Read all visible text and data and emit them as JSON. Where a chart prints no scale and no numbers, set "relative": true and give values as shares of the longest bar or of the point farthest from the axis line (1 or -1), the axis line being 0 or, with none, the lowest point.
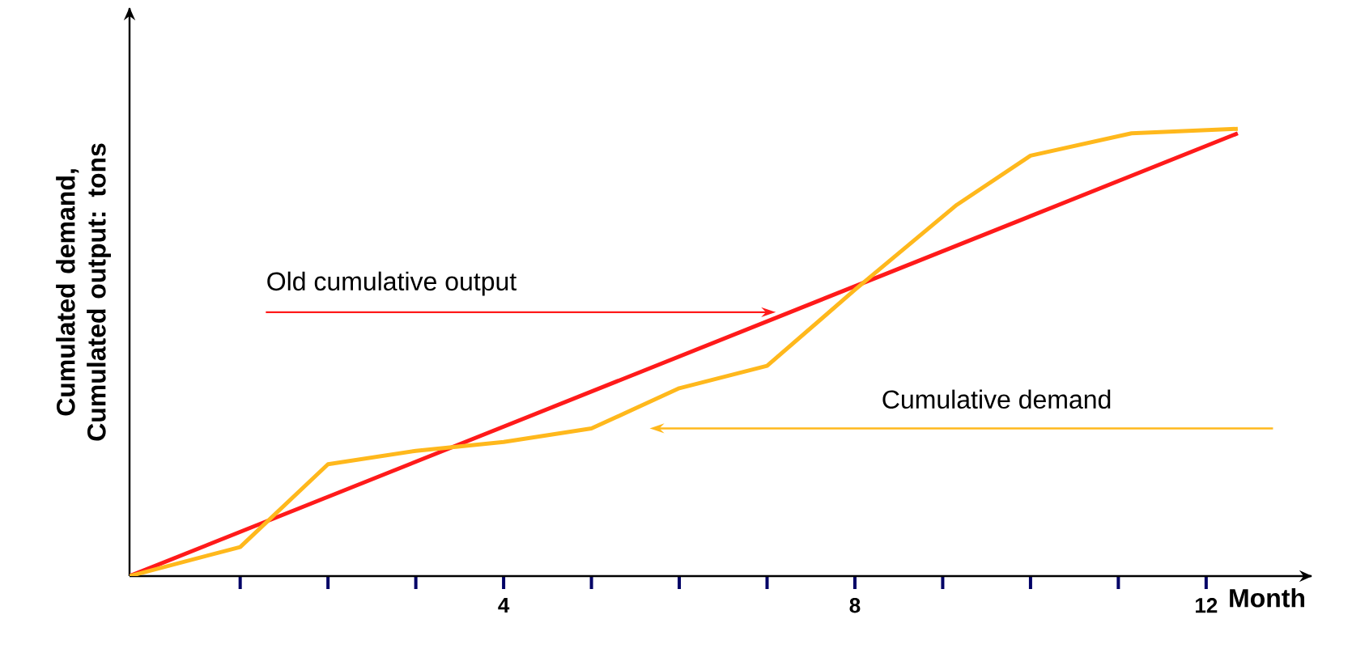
{
  "chart_data": {
    "type": "line",
    "relative": true,
    "xlabel": "Month",
    "ylabel": "Cumulated demand, Cumulated output: tons",
    "xlim": [
      -0.26,
      13.2
    ],
    "xticks": [
      {
        "value": 1,
        "label": null
      },
      {
        "value": 2,
        "label": null
      },
      {
        "value": 3,
        "label": null
      },
      4,
      {
        "value": 5,
        "label": null
      },
      {
        "value": 6,
        "label": null
      },
      {
        "value": 7,
        "label": null
      },
      8,
      {
        "value": 9,
        "label": null
      },
      {
        "value": 10,
        "label": null
      },
      {
        "value": 11,
        "label": null
      },
      12
    ],
    "tick_labels": "x",
    "grid": false,
    "marker": "none",
    "line_style": "solid",
    "series": [
      {
        "color": "#ff1a1a",
        "x": [
          -0.26,
          12.36
        ],
        "values": [
          0,
          0.99
        ]
      },
      {
        "color": "#ffb81c",
        "x": [
          -0.26,
          1,
          2,
          3,
          4,
          5,
          6,
          7,
          8,
          9.16,
          10,
          11.15,
          12.36
        ],
        "values": [
          0,
          0.065,
          0.25,
          0.28,
          0.3,
          0.33,
          0.42,
          0.47,
          0.64,
          0.83,
          0.94,
          0.99,
          1
        ]
      }
    ],
    "annotations": [
      {
        "text": "Old cumulative output",
        "x": 7.1,
        "y": 0.59
      },
      "Cumulative demand"
    ]
  }
}
